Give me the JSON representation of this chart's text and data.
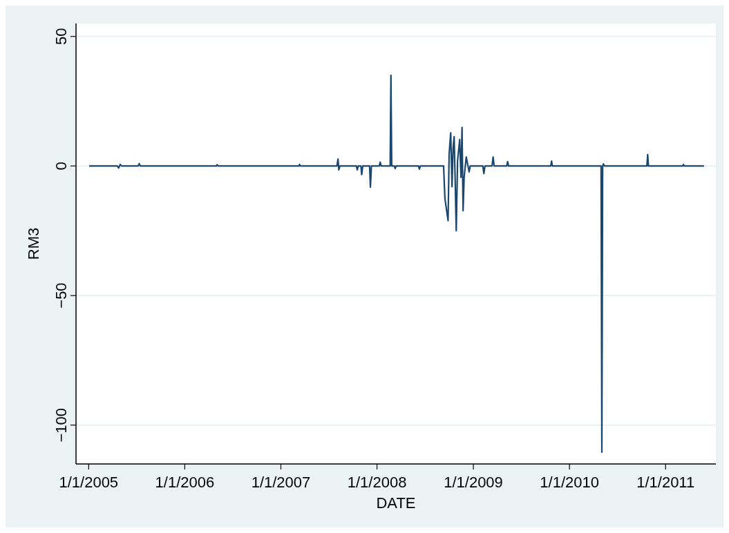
{
  "chart_data": {
    "type": "line",
    "xlabel": "DATE",
    "ylabel": "RM3",
    "xlim": [
      "2004-11-14",
      "2011-07-11"
    ],
    "xticks": [
      {
        "value": "2005-01-01",
        "label": "1/1/2005"
      },
      {
        "value": "2006-01-01",
        "label": "1/1/2006"
      },
      {
        "value": "2007-01-01",
        "label": "1/1/2007"
      },
      {
        "value": "2008-01-01",
        "label": "1/1/2008"
      },
      {
        "value": "2009-01-01",
        "label": "1/1/2009"
      },
      {
        "value": "2010-01-01",
        "label": "1/1/2010"
      },
      {
        "value": "2011-01-01",
        "label": "1/1/2011"
      }
    ],
    "ylim": [
      -115,
      55
    ],
    "yticks": [
      {
        "value": -100,
        "label": "−100"
      },
      {
        "value": -50,
        "label": "−50"
      },
      0,
      50
    ],
    "grid": "y",
    "marker": "none",
    "line_style": "solid",
    "x": [
      "2005-01-03",
      "2005-04-20",
      "2005-04-25",
      "2005-05-01",
      "2005-05-06",
      "2005-07-08",
      "2005-07-12",
      "2005-07-16",
      "2006-05-01",
      "2006-05-04",
      "2006-05-08",
      "2007-03-10",
      "2007-03-13",
      "2007-03-16",
      "2007-08-02",
      "2007-08-06",
      "2007-08-09",
      "2007-08-13",
      "2007-10-15",
      "2007-10-18",
      "2007-10-22",
      "2007-11-01",
      "2007-11-04",
      "2007-11-08",
      "2007-12-04",
      "2007-12-07",
      "2007-12-11",
      "2008-01-10",
      "2008-01-13",
      "2008-01-17",
      "2008-02-20",
      "2008-02-23",
      "2008-02-26",
      "2008-03-07",
      "2008-03-10",
      "2008-03-14",
      "2008-06-07",
      "2008-06-10",
      "2008-06-14",
      "2008-09-10",
      "2008-09-15",
      "2008-09-27",
      "2008-10-01",
      "2008-10-07",
      "2008-10-12",
      "2008-10-16",
      "2008-10-20",
      "2008-10-24",
      "2008-10-28",
      "2008-11-02",
      "2008-11-10",
      "2008-11-15",
      "2008-11-19",
      "2008-11-23",
      "2008-11-27",
      "2008-12-05",
      "2008-12-16",
      "2008-12-20",
      "2009-02-06",
      "2009-02-10",
      "2009-02-14",
      "2009-03-13",
      "2009-03-17",
      "2009-03-21",
      "2009-05-08",
      "2009-05-11",
      "2009-05-15",
      "2009-10-22",
      "2009-10-25",
      "2009-10-28",
      "2010-05-01",
      "2010-05-04",
      "2010-05-07",
      "2010-05-10",
      "2010-05-14",
      "2010-10-22",
      "2010-10-25",
      "2010-10-28",
      "2011-03-07",
      "2011-03-10",
      "2011-03-13",
      "2011-05-27"
    ],
    "series": [
      {
        "color": "#1a476f",
        "values": [
          0,
          0,
          -0.8,
          0.6,
          0,
          0,
          0.9,
          0,
          0,
          0.5,
          0,
          0,
          0.6,
          0,
          0,
          2.7,
          -1.5,
          0,
          0,
          -1.5,
          0,
          0,
          -3.3,
          0,
          0,
          -8.2,
          0,
          0,
          1.5,
          0,
          0,
          35,
          0,
          0,
          -1,
          0,
          0,
          -1.2,
          0,
          0,
          -12.5,
          -21.1,
          4.6,
          12.8,
          -8,
          6.9,
          11.3,
          -5.8,
          -25,
          1.9,
          10.2,
          -4.4,
          14.9,
          -17.3,
          -4.4,
          3.5,
          -2.3,
          0,
          0,
          -2.9,
          0,
          0,
          3.5,
          0,
          0,
          1.7,
          0,
          0,
          1.9,
          0,
          0,
          -110.5,
          0,
          0.8,
          0,
          0,
          4.4,
          0,
          0,
          0.6,
          0,
          0
        ]
      }
    ]
  }
}
